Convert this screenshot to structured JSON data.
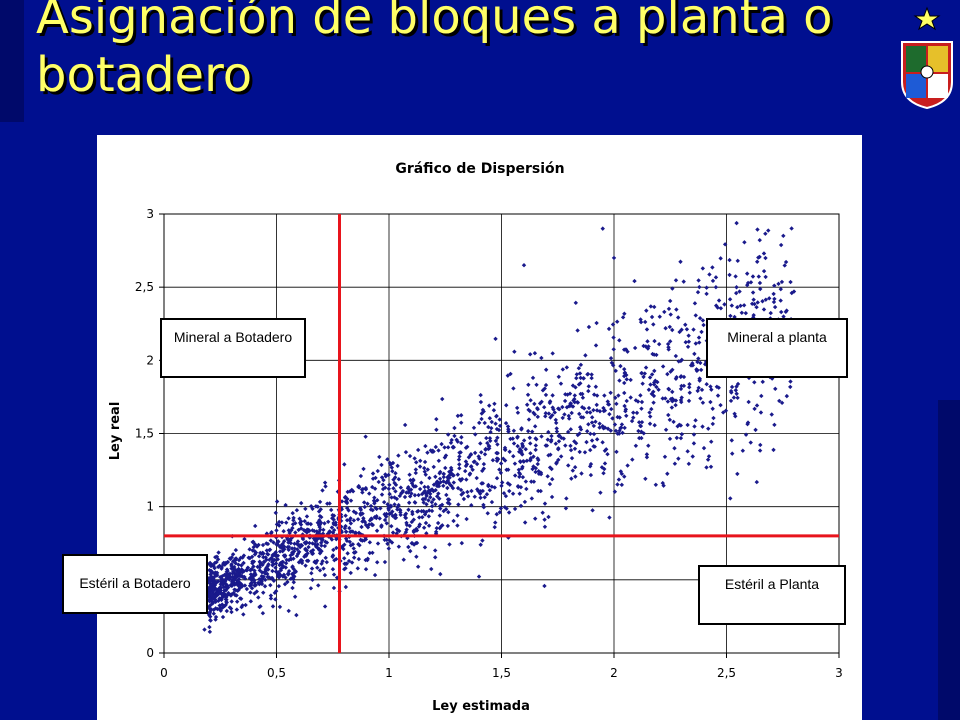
{
  "slide": {
    "title": "Asignación de bloques a planta o botadero",
    "background_color": "#000f8f",
    "title_color": "#ffff66",
    "logo": "university-crest-icon"
  },
  "annotations": {
    "mineral_a_botadero": "Mineral a Botadero",
    "mineral_a_planta": "Mineral a planta",
    "esteril_a_botadero": "Estéril a Botadero",
    "esteril_a_planta": "Estéril a Planta"
  },
  "chart_data": {
    "type": "scatter",
    "title": "Gráfico de Dispersión",
    "xlabel": "Ley estimada",
    "ylabel": "Ley real",
    "xlim": [
      0,
      3
    ],
    "ylim": [
      0,
      3
    ],
    "x_ticks": [
      "0",
      "0,5",
      "1",
      "1,5",
      "2",
      "2,5",
      "3"
    ],
    "y_ticks": [
      "0",
      "0,5",
      "1",
      "1,5",
      "2",
      "2,5",
      "3"
    ],
    "grid": true,
    "marker_color": "#1a1a8c",
    "cutoff_color": "#e8141c",
    "cutoffs": {
      "estimated": 0.78,
      "real": 0.8
    },
    "trend": {
      "x_min": 0.2,
      "x_max": 2.8,
      "slope": 0.72,
      "intercept": 0.27
    },
    "point_count": 2200,
    "sample_points": [
      [
        0.18,
        0.16
      ],
      [
        0.3,
        0.28
      ],
      [
        0.45,
        0.5
      ],
      [
        0.6,
        0.62
      ],
      [
        0.78,
        0.8
      ],
      [
        1.0,
        1.0
      ],
      [
        1.2,
        1.15
      ],
      [
        1.45,
        1.45
      ],
      [
        1.6,
        2.65
      ],
      [
        1.95,
        2.9
      ],
      [
        2.0,
        2.7
      ],
      [
        2.55,
        2.68
      ],
      [
        2.8,
        2.47
      ],
      [
        2.4,
        1.4
      ],
      [
        2.6,
        1.88
      ]
    ]
  }
}
